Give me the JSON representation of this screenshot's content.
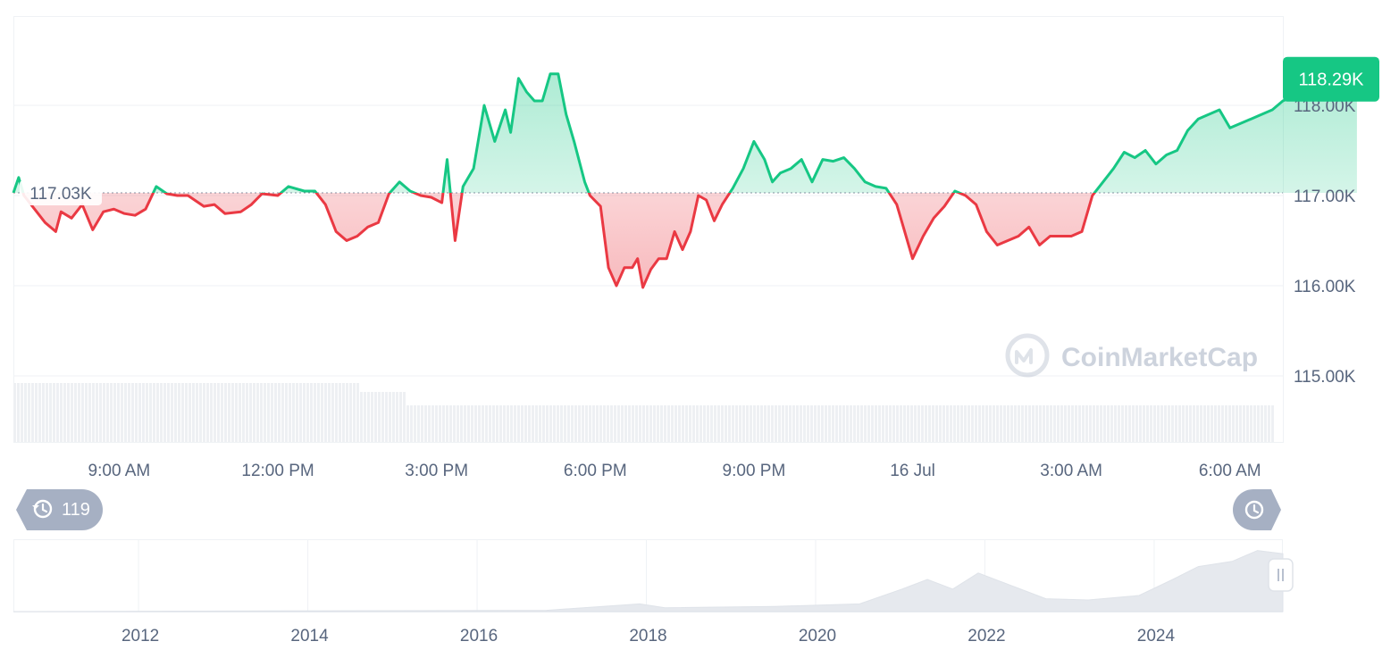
{
  "watermark": "CoinMarketCap",
  "price_badge": "118.29K",
  "open_label": "117.03K",
  "history_badge": {
    "count": "119",
    "icon": "history-icon"
  },
  "time_badge_icon": "clock-icon",
  "handle_icon": "pause-handle-icon",
  "colors": {
    "up": "#16c784",
    "down": "#ea3943",
    "up_fill": "#16c784",
    "down_fill": "#ea3943",
    "grid": "#eff2f5",
    "label": "#58667e",
    "badge": "#a6b0c3",
    "volume": "#eef0f3"
  },
  "chart_data": {
    "type": "line",
    "baseline": 117.03,
    "last_value": 118.29,
    "y_unit": "K",
    "y_ticks": [
      "118.00K",
      "117.00K",
      "116.00K",
      "115.00K"
    ],
    "y_tick_values": [
      118,
      117,
      116,
      115
    ],
    "ylim": [
      115,
      118.99
    ],
    "x_ticks": [
      "9:00 AM",
      "12:00 PM",
      "3:00 PM",
      "6:00 PM",
      "9:00 PM",
      "16 Jul",
      "3:00 AM",
      "6:00 AM"
    ],
    "x_tick_hours": [
      9,
      12,
      15,
      18,
      21,
      24,
      27,
      30
    ],
    "xlim_hours": [
      7,
      31
    ],
    "series": [
      {
        "points": [
          [
            7.0,
            117.03
          ],
          [
            7.1,
            117.2
          ],
          [
            7.2,
            117.0
          ],
          [
            7.4,
            116.85
          ],
          [
            7.6,
            116.7
          ],
          [
            7.8,
            116.6
          ],
          [
            7.9,
            116.82
          ],
          [
            8.1,
            116.75
          ],
          [
            8.3,
            116.9
          ],
          [
            8.5,
            116.62
          ],
          [
            8.7,
            116.82
          ],
          [
            8.9,
            116.85
          ],
          [
            9.1,
            116.8
          ],
          [
            9.3,
            116.78
          ],
          [
            9.5,
            116.85
          ],
          [
            9.7,
            117.1
          ],
          [
            9.9,
            117.02
          ],
          [
            10.1,
            117.0
          ],
          [
            10.3,
            117.0
          ],
          [
            10.6,
            116.88
          ],
          [
            10.8,
            116.9
          ],
          [
            11.0,
            116.8
          ],
          [
            11.3,
            116.82
          ],
          [
            11.5,
            116.9
          ],
          [
            11.7,
            117.02
          ],
          [
            12.0,
            117.0
          ],
          [
            12.2,
            117.1
          ],
          [
            12.5,
            117.05
          ],
          [
            12.7,
            117.05
          ],
          [
            12.9,
            116.9
          ],
          [
            13.1,
            116.6
          ],
          [
            13.3,
            116.5
          ],
          [
            13.5,
            116.55
          ],
          [
            13.7,
            116.65
          ],
          [
            13.9,
            116.7
          ],
          [
            14.1,
            117.02
          ],
          [
            14.3,
            117.15
          ],
          [
            14.5,
            117.05
          ],
          [
            14.7,
            117.0
          ],
          [
            14.9,
            116.98
          ],
          [
            15.1,
            116.92
          ],
          [
            15.2,
            117.4
          ],
          [
            15.35,
            116.5
          ],
          [
            15.5,
            117.1
          ],
          [
            15.7,
            117.3
          ],
          [
            15.9,
            118.0
          ],
          [
            16.1,
            117.6
          ],
          [
            16.3,
            117.95
          ],
          [
            16.4,
            117.7
          ],
          [
            16.55,
            118.3
          ],
          [
            16.7,
            118.15
          ],
          [
            16.85,
            118.05
          ],
          [
            17.0,
            118.05
          ],
          [
            17.15,
            118.35
          ],
          [
            17.3,
            118.35
          ],
          [
            17.45,
            117.9
          ],
          [
            17.6,
            117.6
          ],
          [
            17.8,
            117.15
          ],
          [
            17.9,
            117.0
          ],
          [
            18.1,
            116.88
          ],
          [
            18.25,
            116.2
          ],
          [
            18.4,
            116.0
          ],
          [
            18.55,
            116.2
          ],
          [
            18.7,
            116.2
          ],
          [
            18.8,
            116.3
          ],
          [
            18.9,
            115.98
          ],
          [
            19.05,
            116.18
          ],
          [
            19.2,
            116.3
          ],
          [
            19.35,
            116.3
          ],
          [
            19.5,
            116.6
          ],
          [
            19.65,
            116.4
          ],
          [
            19.8,
            116.6
          ],
          [
            19.95,
            117.0
          ],
          [
            20.1,
            116.95
          ],
          [
            20.25,
            116.72
          ],
          [
            20.4,
            116.9
          ],
          [
            20.6,
            117.08
          ],
          [
            20.8,
            117.3
          ],
          [
            21.0,
            117.6
          ],
          [
            21.2,
            117.4
          ],
          [
            21.35,
            117.15
          ],
          [
            21.5,
            117.25
          ],
          [
            21.7,
            117.3
          ],
          [
            21.9,
            117.4
          ],
          [
            22.1,
            117.15
          ],
          [
            22.3,
            117.4
          ],
          [
            22.5,
            117.38
          ],
          [
            22.7,
            117.42
          ],
          [
            22.9,
            117.3
          ],
          [
            23.1,
            117.15
          ],
          [
            23.3,
            117.1
          ],
          [
            23.5,
            117.08
          ],
          [
            23.7,
            116.9
          ],
          [
            23.85,
            116.6
          ],
          [
            24.0,
            116.3
          ],
          [
            24.2,
            116.55
          ],
          [
            24.4,
            116.75
          ],
          [
            24.6,
            116.88
          ],
          [
            24.8,
            117.05
          ],
          [
            25.0,
            117.0
          ],
          [
            25.2,
            116.9
          ],
          [
            25.4,
            116.6
          ],
          [
            25.6,
            116.45
          ],
          [
            25.8,
            116.5
          ],
          [
            26.0,
            116.55
          ],
          [
            26.2,
            116.65
          ],
          [
            26.4,
            116.45
          ],
          [
            26.6,
            116.55
          ],
          [
            26.8,
            116.55
          ],
          [
            27.0,
            116.55
          ],
          [
            27.2,
            116.6
          ],
          [
            27.4,
            117.0
          ],
          [
            27.6,
            117.15
          ],
          [
            27.8,
            117.3
          ],
          [
            28.0,
            117.48
          ],
          [
            28.2,
            117.42
          ],
          [
            28.4,
            117.5
          ],
          [
            28.6,
            117.35
          ],
          [
            28.8,
            117.45
          ],
          [
            29.0,
            117.5
          ],
          [
            29.2,
            117.72
          ],
          [
            29.4,
            117.85
          ],
          [
            29.6,
            117.9
          ],
          [
            29.8,
            117.95
          ],
          [
            30.0,
            117.75
          ],
          [
            30.2,
            117.8
          ],
          [
            30.4,
            117.85
          ],
          [
            30.6,
            117.9
          ],
          [
            30.8,
            117.95
          ],
          [
            31.0,
            118.05
          ],
          [
            31.2,
            118.1
          ],
          [
            31.4,
            118.15
          ],
          [
            31.6,
            118.2
          ],
          [
            31.8,
            118.22
          ],
          [
            32.0,
            118.25
          ],
          [
            32.2,
            118.27
          ],
          [
            32.4,
            118.29
          ]
        ]
      }
    ],
    "navigator": {
      "type": "area",
      "x_ticks": [
        "2012",
        "2014",
        "2016",
        "2018",
        "2020",
        "2022",
        "2024"
      ],
      "x_tick_years": [
        2012,
        2014,
        2016,
        2018,
        2020,
        2022,
        2024
      ],
      "xlim_years": [
        2010.5,
        2025.5
      ],
      "points": [
        [
          2010.5,
          0
        ],
        [
          2013.5,
          0.01
        ],
        [
          2016.8,
          0.02
        ],
        [
          2017.9,
          0.12
        ],
        [
          2018.2,
          0.06
        ],
        [
          2019.5,
          0.08
        ],
        [
          2020.5,
          0.12
        ],
        [
          2021.0,
          0.35
        ],
        [
          2021.3,
          0.5
        ],
        [
          2021.6,
          0.35
        ],
        [
          2021.9,
          0.6
        ],
        [
          2022.3,
          0.4
        ],
        [
          2022.7,
          0.2
        ],
        [
          2023.2,
          0.18
        ],
        [
          2023.8,
          0.25
        ],
        [
          2024.2,
          0.5
        ],
        [
          2024.5,
          0.7
        ],
        [
          2024.9,
          0.78
        ],
        [
          2025.2,
          0.95
        ],
        [
          2025.5,
          0.9
        ]
      ]
    }
  }
}
